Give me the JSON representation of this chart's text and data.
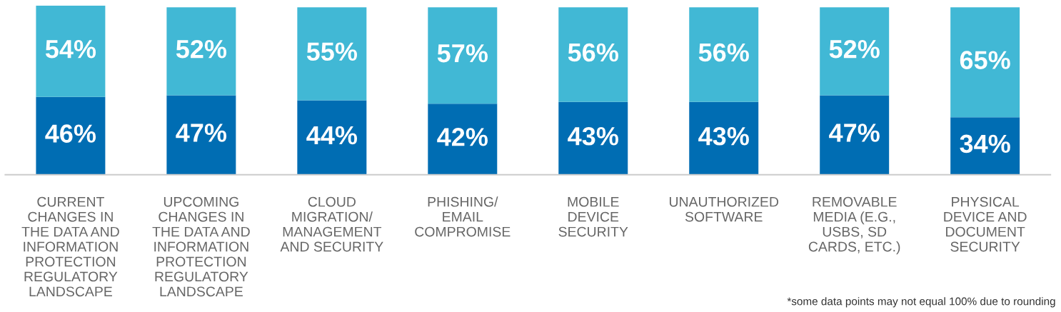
{
  "chart_data": {
    "type": "bar",
    "stacked": true,
    "legend": false,
    "grid": false,
    "tick_labels": "x",
    "categories": [
      "CURRENT\nCHANGES IN\nTHE DATA AND\nINFORMATION\nPROTECTION\nREGULATORY\nLANDSCAPE",
      "UPCOMING\nCHANGES IN\nTHE DATA AND\nINFORMATION\nPROTECTION\nREGULATORY\nLANDSCAPE",
      "CLOUD\nMIGRATION/\nMANAGEMENT\nAND SECURITY",
      "PHISHING/\nEMAIL\nCOMPROMISE",
      "MOBILE\nDEVICE\nSECURITY",
      "UNAUTHORIZED\nSOFTWARE",
      "REMOVABLE\nMEDIA (E.G.,\nUSBS, SD\nCARDS, ETC.)",
      "PHYSICAL\nDEVICE AND\nDOCUMENT\nSECURITY"
    ],
    "series": [
      {
        "color": "#006db3",
        "values": [
          46,
          47,
          44,
          42,
          43,
          43,
          47,
          34
        ],
        "value_labels": [
          "46%",
          "47%",
          "44%",
          "42%",
          "43%",
          "43%",
          "47%",
          "34%"
        ]
      },
      {
        "color": "#41b8d5",
        "values": [
          54,
          52,
          55,
          57,
          56,
          56,
          52,
          65
        ],
        "value_labels": [
          "54%",
          "52%",
          "55%",
          "57%",
          "56%",
          "56%",
          "52%",
          "65%"
        ]
      }
    ],
    "annotations": [
      "*some data points may not equal 100% due to rounding"
    ]
  }
}
